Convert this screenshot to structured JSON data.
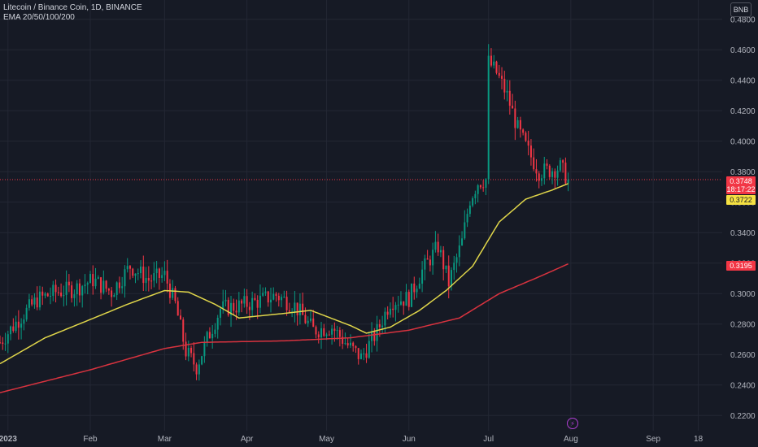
{
  "header": {
    "symbol_line": "Litecoin / Binance Coin, 1D, BINANCE",
    "indicator_line": "EMA 20/50/100/200"
  },
  "currency_button": "BNB",
  "price_tags": {
    "last_price": "0.3748",
    "countdown": "18:17:22",
    "ema50": "0.3722",
    "ema200": "0.3195"
  },
  "event_icon": "lightning-icon",
  "colors": {
    "background": "#161a25",
    "up_candle": "#089981",
    "down_candle": "#f23645",
    "ema50": "#e0d64a",
    "ema200": "#d8333f",
    "grid": "#232734",
    "last_price_line": "#f23645"
  },
  "chart_data": {
    "type": "candlestick",
    "interval": "1D",
    "y_axis": {
      "range": [
        0.21,
        0.49
      ],
      "ticks": [
        "0.4800",
        "0.4600",
        "0.4400",
        "0.4200",
        "0.4000",
        "0.3800",
        "0.3600",
        "0.3400",
        "0.3200",
        "0.3000",
        "0.2800",
        "0.2600",
        "0.2400",
        "0.2200"
      ]
    },
    "x_axis": {
      "range": [
        "2022-12-29",
        "2023-09-27"
      ],
      "labels": [
        {
          "date": "2023-01-01",
          "text": "2023"
        },
        {
          "date": "2023-02-01",
          "text": "Feb"
        },
        {
          "date": "2023-03-01",
          "text": "Mar"
        },
        {
          "date": "2023-04-01",
          "text": "Apr"
        },
        {
          "date": "2023-05-01",
          "text": "May"
        },
        {
          "date": "2023-06-01",
          "text": "Jun"
        },
        {
          "date": "2023-07-01",
          "text": "Jul"
        },
        {
          "date": "2023-08-01",
          "text": "Aug"
        },
        {
          "date": "2023-09-01",
          "text": "Sep"
        },
        {
          "date": "2023-09-18",
          "text": "18"
        }
      ]
    },
    "close_anchors": [
      [
        "2022-12-29",
        0.268
      ],
      [
        "2023-01-05",
        0.283
      ],
      [
        "2023-01-12",
        0.296
      ],
      [
        "2023-01-19",
        0.301
      ],
      [
        "2023-01-26",
        0.303
      ],
      [
        "2023-02-02",
        0.309
      ],
      [
        "2023-02-09",
        0.301
      ],
      [
        "2023-02-16",
        0.318
      ],
      [
        "2023-02-23",
        0.309
      ],
      [
        "2023-03-01",
        0.312
      ],
      [
        "2023-03-05",
        0.293
      ],
      [
        "2023-03-09",
        0.262
      ],
      [
        "2023-03-13",
        0.252
      ],
      [
        "2023-03-17",
        0.27
      ],
      [
        "2023-03-22",
        0.29
      ],
      [
        "2023-03-29",
        0.292
      ],
      [
        "2023-04-05",
        0.295
      ],
      [
        "2023-04-12",
        0.299
      ],
      [
        "2023-04-19",
        0.292
      ],
      [
        "2023-04-26",
        0.276
      ],
      [
        "2023-05-03",
        0.278
      ],
      [
        "2023-05-09",
        0.266
      ],
      [
        "2023-05-14",
        0.258
      ],
      [
        "2023-05-20",
        0.275
      ],
      [
        "2023-05-25",
        0.295
      ],
      [
        "2023-06-01",
        0.297
      ],
      [
        "2023-06-06",
        0.315
      ],
      [
        "2023-06-12",
        0.331
      ],
      [
        "2023-06-16",
        0.307
      ],
      [
        "2023-06-21",
        0.334
      ],
      [
        "2023-06-24",
        0.362
      ],
      [
        "2023-06-27",
        0.373
      ],
      [
        "2023-06-30",
        0.375
      ],
      [
        "2023-07-01",
        0.452
      ],
      [
        "2023-07-04",
        0.445
      ],
      [
        "2023-07-08",
        0.43
      ],
      [
        "2023-07-12",
        0.408
      ],
      [
        "2023-07-16",
        0.393
      ],
      [
        "2023-07-20",
        0.38
      ],
      [
        "2023-07-24",
        0.381
      ],
      [
        "2023-07-28",
        0.383
      ],
      [
        "2023-07-31",
        0.3748
      ]
    ],
    "ema50": [
      [
        "2022-12-29",
        0.254
      ],
      [
        "2023-01-15",
        0.271
      ],
      [
        "2023-02-01",
        0.283
      ],
      [
        "2023-02-15",
        0.293
      ],
      [
        "2023-03-01",
        0.302
      ],
      [
        "2023-03-10",
        0.301
      ],
      [
        "2023-03-20",
        0.293
      ],
      [
        "2023-03-29",
        0.284
      ],
      [
        "2023-04-15",
        0.287
      ],
      [
        "2023-04-25",
        0.289
      ],
      [
        "2023-05-10",
        0.279
      ],
      [
        "2023-05-16",
        0.274
      ],
      [
        "2023-05-25",
        0.278
      ],
      [
        "2023-06-05",
        0.289
      ],
      [
        "2023-06-15",
        0.302
      ],
      [
        "2023-06-25",
        0.318
      ],
      [
        "2023-07-05",
        0.347
      ],
      [
        "2023-07-15",
        0.362
      ],
      [
        "2023-07-25",
        0.368
      ],
      [
        "2023-07-31",
        0.3722
      ]
    ],
    "ema200": [
      [
        "2022-12-29",
        0.235
      ],
      [
        "2023-02-01",
        0.25
      ],
      [
        "2023-03-01",
        0.264
      ],
      [
        "2023-03-15",
        0.268
      ],
      [
        "2023-04-15",
        0.269
      ],
      [
        "2023-05-10",
        0.271
      ],
      [
        "2023-06-01",
        0.276
      ],
      [
        "2023-06-20",
        0.284
      ],
      [
        "2023-07-05",
        0.3
      ],
      [
        "2023-07-20",
        0.311
      ],
      [
        "2023-07-31",
        0.3195
      ]
    ],
    "last_price": 0.3748
  }
}
